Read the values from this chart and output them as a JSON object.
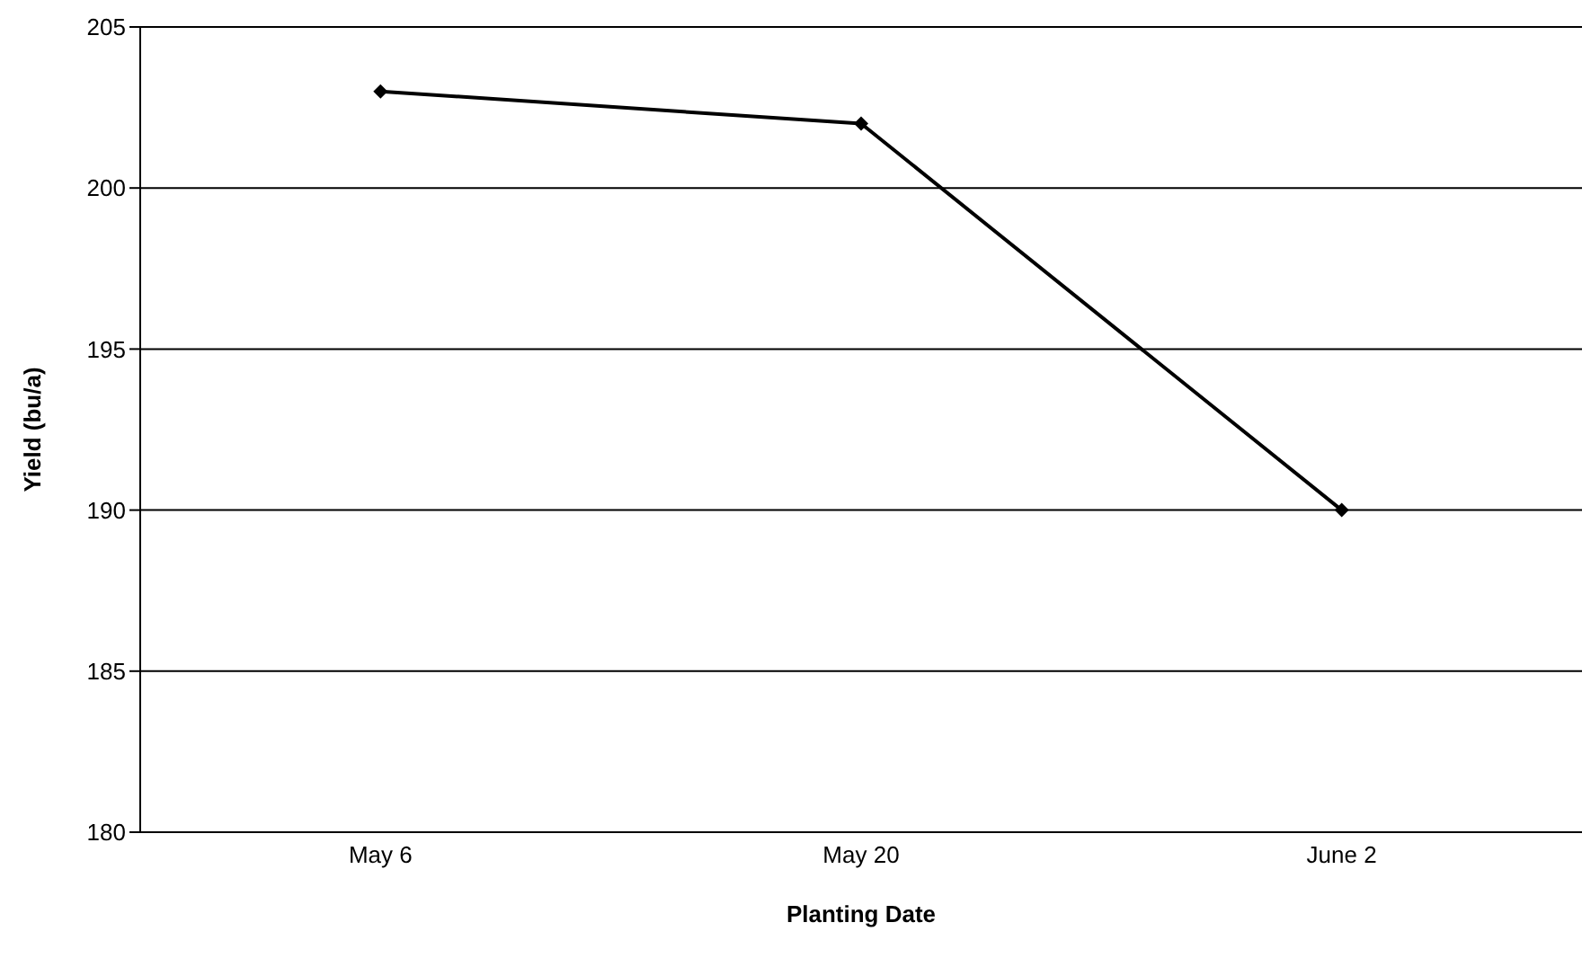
{
  "chart_data": {
    "type": "line",
    "xlabel": "Planting Date",
    "ylabel": "Yield (bu/a)",
    "categories": [
      "May 6",
      "May 20",
      "June 2"
    ],
    "series": [
      {
        "color": "#000000",
        "values": [
          203,
          202,
          190
        ]
      }
    ],
    "ylim": [
      180,
      205
    ],
    "yticks": [
      180,
      185,
      190,
      195,
      200,
      205
    ],
    "grid": "y",
    "marker": "diamond",
    "line_style": "solid"
  }
}
